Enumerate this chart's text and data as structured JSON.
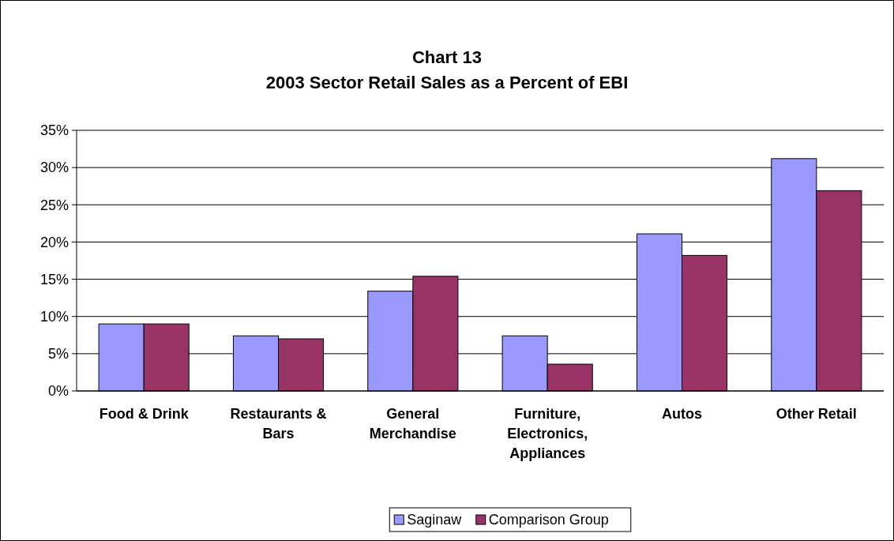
{
  "chart_data": {
    "type": "bar",
    "title": "Chart 13",
    "subtitle": "2003 Sector Retail Sales as a Percent of EBI",
    "categories": [
      "Food & Drink",
      "Restaurants & Bars",
      "General Merchandise",
      "Furniture, Electronics, Appliances",
      "Autos",
      "Other Retail"
    ],
    "series": [
      {
        "name": "Saginaw",
        "color": "#9999ff",
        "values": [
          9.0,
          7.4,
          13.4,
          7.4,
          21.1,
          31.2
        ]
      },
      {
        "name": "Comparison Group",
        "color": "#993366",
        "values": [
          9.0,
          7.0,
          15.4,
          3.6,
          18.2,
          26.9
        ]
      }
    ],
    "ylim": [
      0,
      35
    ],
    "yticks": [
      {
        "value": 0,
        "label": "0%"
      },
      {
        "value": 5,
        "label": "5%"
      },
      {
        "value": 10,
        "label": "10%"
      },
      {
        "value": 15,
        "label": "15%"
      },
      {
        "value": 20,
        "label": "20%"
      },
      {
        "value": 25,
        "label": "25%"
      },
      {
        "value": 30,
        "label": "30%"
      },
      {
        "value": 35,
        "label": "35%"
      }
    ],
    "grid": "y",
    "legend": "bottom"
  }
}
